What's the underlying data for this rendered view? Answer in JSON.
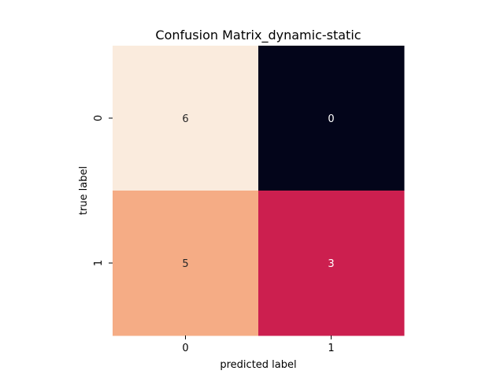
{
  "chart_data": {
    "type": "heatmap",
    "title": "Confusion Matrix_dynamic-static",
    "xlabel": "predicted label",
    "ylabel": "true label",
    "x_categories": [
      "0",
      "1"
    ],
    "y_categories": [
      "0",
      "1"
    ],
    "values": [
      [
        6,
        0
      ],
      [
        5,
        3
      ]
    ],
    "annotations": [
      [
        "6",
        "0"
      ],
      [
        "5",
        "3"
      ]
    ],
    "value_range": [
      0,
      6
    ],
    "colormap": "rocket",
    "colorbar": false,
    "grid": false,
    "cell_colors": [
      [
        "#faebdd",
        "#03051a"
      ],
      [
        "#f5ac85",
        "#cc1f4f"
      ]
    ],
    "annotation_colors": [
      [
        "#262626",
        "#ffffff"
      ],
      [
        "#262626",
        "#ffffff"
      ]
    ]
  }
}
